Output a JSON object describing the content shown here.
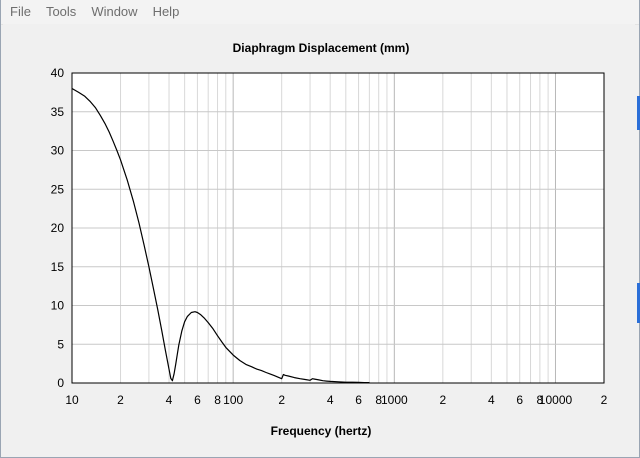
{
  "menu": {
    "items": [
      "File",
      "Tools",
      "Window",
      "Help"
    ]
  },
  "chart_data": {
    "type": "line",
    "title": "Diaphragm Displacement (mm)",
    "xlabel": "Frequency (hertz)",
    "ylabel": "",
    "x_scale": "log",
    "xlim": [
      10,
      20000
    ],
    "ylim": [
      0,
      40
    ],
    "grid": true,
    "x_tick_labels": [
      {
        "value": 10,
        "label": "10"
      },
      {
        "value": 20,
        "label": "2"
      },
      {
        "value": 40,
        "label": "4"
      },
      {
        "value": 60,
        "label": "6"
      },
      {
        "value": 80,
        "label": "8"
      },
      {
        "value": 100,
        "label": "100"
      },
      {
        "value": 200,
        "label": "2"
      },
      {
        "value": 400,
        "label": "4"
      },
      {
        "value": 600,
        "label": "6"
      },
      {
        "value": 800,
        "label": "8"
      },
      {
        "value": 1000,
        "label": "1000"
      },
      {
        "value": 2000,
        "label": "2"
      },
      {
        "value": 4000,
        "label": "4"
      },
      {
        "value": 6000,
        "label": "6"
      },
      {
        "value": 8000,
        "label": "8"
      },
      {
        "value": 10000,
        "label": "10000"
      },
      {
        "value": 20000,
        "label": "2"
      }
    ],
    "y_tick_labels": [
      {
        "value": 0,
        "label": "0"
      },
      {
        "value": 5,
        "label": "5"
      },
      {
        "value": 10,
        "label": "10"
      },
      {
        "value": 15,
        "label": "15"
      },
      {
        "value": 20,
        "label": "20"
      },
      {
        "value": 25,
        "label": "25"
      },
      {
        "value": 30,
        "label": "30"
      },
      {
        "value": 35,
        "label": "35"
      },
      {
        "value": 40,
        "label": "40"
      }
    ],
    "series": [
      {
        "color": "#000000",
        "x": [
          10,
          11,
          12,
          13,
          14,
          15,
          16,
          17,
          18,
          19,
          20,
          22,
          24,
          26,
          28,
          30,
          32,
          34,
          36,
          38,
          40,
          41,
          42,
          43,
          44,
          45,
          46,
          48,
          50,
          52,
          55,
          58,
          60,
          63,
          66,
          70,
          75,
          80,
          85,
          90,
          100,
          110,
          120,
          130,
          140,
          150,
          160,
          170,
          180,
          190,
          200,
          205,
          210,
          220,
          240,
          260,
          280,
          300,
          310,
          320,
          340,
          360,
          380,
          400,
          450,
          500,
          550,
          600,
          650,
          700
        ],
        "y": [
          38,
          37.5,
          37,
          36.3,
          35.5,
          34.5,
          33.5,
          32.4,
          31.2,
          30,
          28.8,
          26.2,
          23.5,
          20.7,
          17.8,
          15,
          12.2,
          9.5,
          6.8,
          4.2,
          1.8,
          0.6,
          0.3,
          1.2,
          2.4,
          3.7,
          4.9,
          6.7,
          7.9,
          8.6,
          9.1,
          9.2,
          9.1,
          8.8,
          8.4,
          7.8,
          7,
          6.1,
          5.3,
          4.6,
          3.6,
          2.9,
          2.4,
          2.1,
          1.8,
          1.6,
          1.35,
          1.15,
          0.95,
          0.75,
          0.55,
          1.1,
          1.0,
          0.9,
          0.7,
          0.55,
          0.45,
          0.35,
          0.55,
          0.5,
          0.4,
          0.3,
          0.25,
          0.2,
          0.15,
          0.1,
          0.1,
          0.08,
          0.05,
          0.05
        ]
      }
    ]
  }
}
